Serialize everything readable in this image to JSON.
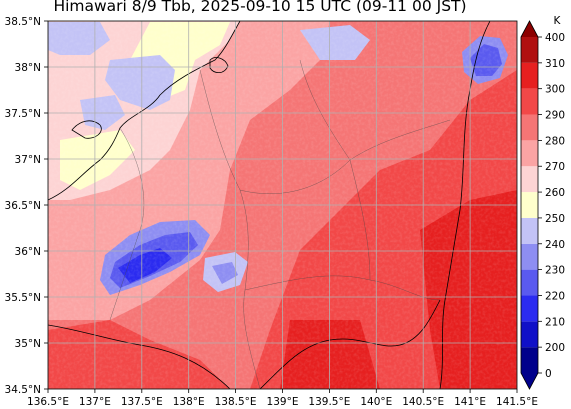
{
  "title": "Himawari 8/9 Tbb, 2025-09-10 15 UTC (09-11 00 JST)",
  "map": {
    "lon_range": [
      136.5,
      141.5
    ],
    "lat_range": [
      34.5,
      38.5
    ],
    "lon_ticks": [
      {
        "value": 136.5,
        "label": "136.5°E"
      },
      {
        "value": 137.0,
        "label": "137°E"
      },
      {
        "value": 137.5,
        "label": "137.5°E"
      },
      {
        "value": 138.0,
        "label": "138°E"
      },
      {
        "value": 138.5,
        "label": "138.5°E"
      },
      {
        "value": 139.0,
        "label": "139°E"
      },
      {
        "value": 139.5,
        "label": "139.5°E"
      },
      {
        "value": 140.0,
        "label": "140°E"
      },
      {
        "value": 140.5,
        "label": "140.5°E"
      },
      {
        "value": 141.0,
        "label": "141°E"
      },
      {
        "value": 141.5,
        "label": "141.5°E"
      }
    ],
    "lat_ticks": [
      {
        "value": 38.5,
        "label": "38.5°N"
      },
      {
        "value": 38.0,
        "label": "38°N"
      },
      {
        "value": 37.5,
        "label": "37.5°N"
      },
      {
        "value": 37.0,
        "label": "37°N"
      },
      {
        "value": 36.5,
        "label": "36.5°N"
      },
      {
        "value": 36.0,
        "label": "36°N"
      },
      {
        "value": 35.5,
        "label": "35.5°N"
      },
      {
        "value": 35.0,
        "label": "35°N"
      },
      {
        "value": 34.5,
        "label": "34.5°N"
      }
    ],
    "grid": true
  },
  "colorbar": {
    "unit": "K",
    "levels": [
      0,
      200,
      210,
      220,
      230,
      240,
      250,
      260,
      270,
      280,
      290,
      300,
      310,
      400
    ],
    "colors": [
      "#00008b",
      "#1010c8",
      "#2b2bf0",
      "#5a5aef",
      "#8e8ef2",
      "#c3c3f6",
      "#ffffcc",
      "#fdd4d4",
      "#fba4a4",
      "#f57575",
      "#f24848",
      "#e62020",
      "#b01010"
    ],
    "under_color": "#00008b",
    "over_color": "#8b0000"
  }
}
